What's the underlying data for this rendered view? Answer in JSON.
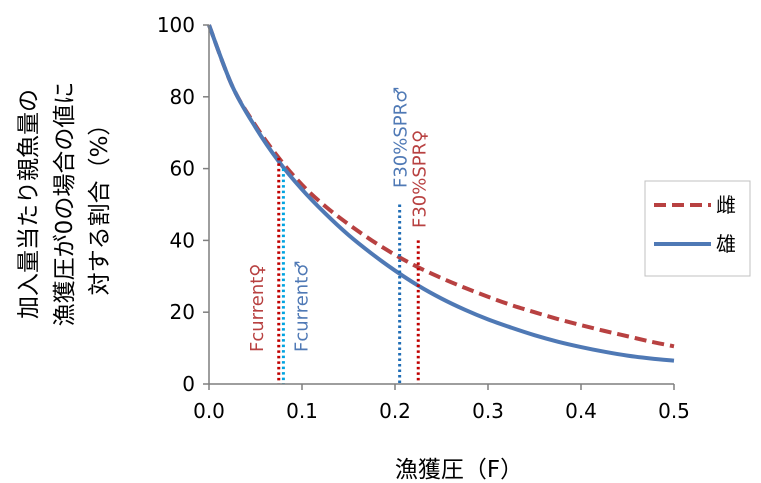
{
  "chart_data": {
    "type": "line",
    "xlabel": "漁獲圧（F）",
    "ylabel_lines": [
      "加入量当たり親魚量の",
      "漁獲圧が0の場合の値に",
      "対する割合（%）"
    ],
    "xlim": [
      0,
      0.5
    ],
    "ylim": [
      0,
      100
    ],
    "x_ticks": [
      0,
      0.1,
      0.2,
      0.3,
      0.4,
      0.5
    ],
    "x_tick_labels": [
      "0.0",
      "0.1",
      "0.2",
      "0.3",
      "0.4",
      "0.5"
    ],
    "y_ticks": [
      0,
      20,
      40,
      60,
      80,
      100
    ],
    "y_tick_labels": [
      "0",
      "20",
      "40",
      "60",
      "80",
      "100"
    ],
    "grid": false,
    "legend_position": "right",
    "x": [
      0,
      0.025,
      0.05,
      0.075,
      0.1,
      0.125,
      0.15,
      0.175,
      0.2,
      0.225,
      0.25,
      0.275,
      0.3,
      0.325,
      0.35,
      0.375,
      0.4,
      0.425,
      0.45,
      0.475,
      0.5
    ],
    "series": [
      {
        "name": "雌",
        "color": "#b84141",
        "dash": "dashed",
        "values": [
          100,
          83,
          72,
          63,
          55.5,
          49.5,
          44.5,
          40,
          36,
          32.5,
          29.5,
          26.8,
          24.3,
          22,
          20,
          18.1,
          16.4,
          14.8,
          13.3,
          11.8,
          10.5
        ]
      },
      {
        "name": "雄",
        "color": "#4f79b5",
        "dash": "solid",
        "values": [
          100,
          83,
          71.5,
          62,
          54.2,
          47.5,
          41.5,
          36.3,
          31.6,
          27.4,
          23.8,
          20.7,
          18,
          15.7,
          13.6,
          11.8,
          10.3,
          9,
          7.9,
          7.1,
          6.5
        ]
      }
    ],
    "markers": [
      {
        "label": "Fcurrent♀",
        "x": 0.075,
        "top": 63,
        "color": "#c00000",
        "text_color": "#b84141"
      },
      {
        "label": "Fcurrent♂",
        "x": 0.08,
        "top": 60,
        "color": "#00a3e0",
        "text_color": "#4f79b5"
      },
      {
        "label": "F30%SPR♂",
        "x": 0.205,
        "top": 50,
        "color": "#1f6db5",
        "text_color": "#4f79b5"
      },
      {
        "label": "F30%SPR♀",
        "x": 0.225,
        "top": 40,
        "color": "#c00000",
        "text_color": "#b84141"
      }
    ]
  }
}
